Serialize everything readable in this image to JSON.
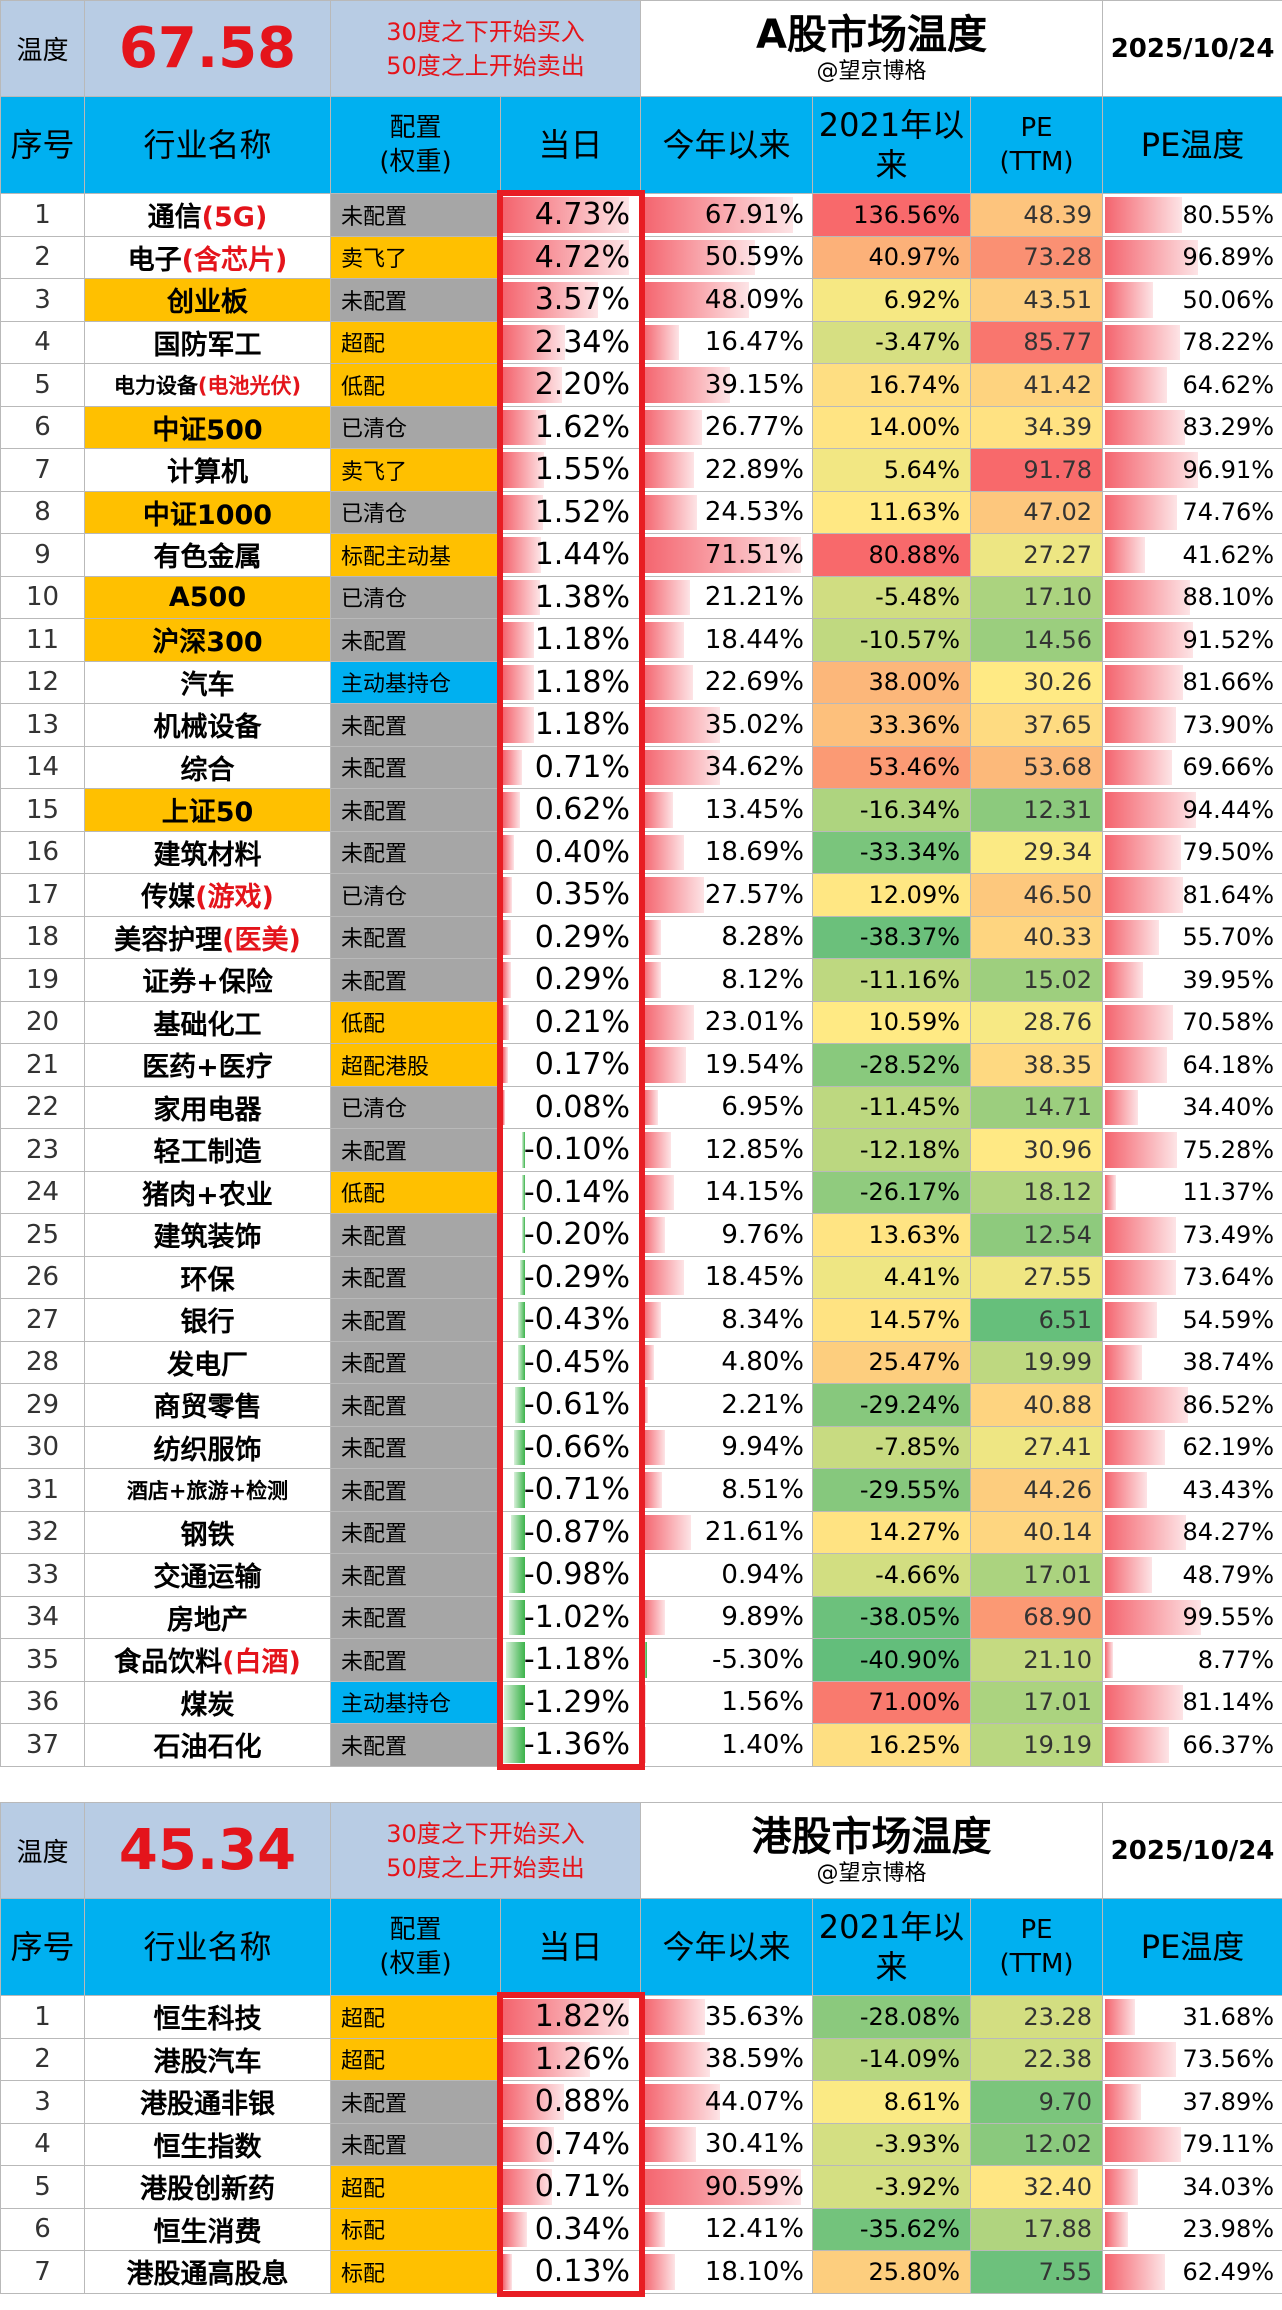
{
  "a_share": {
    "temp_label": "温度",
    "temp_value": "67.58",
    "rule_line1": "30度之下开始买入",
    "rule_line2": "50度之上开始卖出",
    "title": "A股市场温度",
    "author": "@望京博格",
    "date": "2025/10/24",
    "headers": [
      "序号",
      "行业名称",
      "配置\n(权重)",
      "当日",
      "今年以来",
      "2021年以来",
      "PE\n(TTM)",
      "PE温度"
    ],
    "rows": [
      {
        "idx": "1",
        "name": "通信",
        "hl": "(5G)",
        "alloc": "未配置",
        "ac": "gray",
        "nc": "",
        "day": "4.73%",
        "ytd": "67.91%",
        "since": "136.56%",
        "pe": "48.39",
        "pet": "80.55%"
      },
      {
        "idx": "2",
        "name": "电子",
        "hl": "(含芯片)",
        "alloc": "卖飞了",
        "ac": "gold",
        "nc": "",
        "day": "4.72%",
        "ytd": "50.59%",
        "since": "40.97%",
        "pe": "73.28",
        "pet": "96.89%"
      },
      {
        "idx": "3",
        "name": "创业板",
        "hl": "",
        "alloc": "未配置",
        "ac": "gray",
        "nc": "gold",
        "day": "3.57%",
        "ytd": "48.09%",
        "since": "6.92%",
        "pe": "43.51",
        "pet": "50.06%"
      },
      {
        "idx": "4",
        "name": "国防军工",
        "hl": "",
        "alloc": "超配",
        "ac": "gold",
        "nc": "",
        "day": "2.34%",
        "ytd": "16.47%",
        "since": "-3.47%",
        "pe": "85.77",
        "pet": "78.22%"
      },
      {
        "idx": "5",
        "name": "电力设备",
        "hl": "(电池光伏)",
        "alloc": "低配",
        "ac": "gold",
        "nc": "sm",
        "day": "2.20%",
        "ytd": "39.15%",
        "since": "16.74%",
        "pe": "41.42",
        "pet": "64.62%"
      },
      {
        "idx": "6",
        "name": "中证500",
        "hl": "",
        "alloc": "已清仓",
        "ac": "gray",
        "nc": "gold",
        "day": "1.62%",
        "ytd": "26.77%",
        "since": "14.00%",
        "pe": "34.39",
        "pet": "83.29%"
      },
      {
        "idx": "7",
        "name": "计算机",
        "hl": "",
        "alloc": "卖飞了",
        "ac": "gold",
        "nc": "",
        "day": "1.55%",
        "ytd": "22.89%",
        "since": "5.64%",
        "pe": "91.78",
        "pet": "96.91%"
      },
      {
        "idx": "8",
        "name": "中证1000",
        "hl": "",
        "alloc": "已清仓",
        "ac": "gray",
        "nc": "gold",
        "day": "1.52%",
        "ytd": "24.53%",
        "since": "11.63%",
        "pe": "47.02",
        "pet": "74.76%"
      },
      {
        "idx": "9",
        "name": "有色金属",
        "hl": "",
        "alloc": "标配主动基",
        "ac": "gold",
        "nc": "",
        "day": "1.44%",
        "ytd": "71.51%",
        "since": "80.88%",
        "pe": "27.27",
        "pet": "41.62%"
      },
      {
        "idx": "10",
        "name": "A500",
        "hl": "",
        "alloc": "已清仓",
        "ac": "gray",
        "nc": "gold",
        "day": "1.38%",
        "ytd": "21.21%",
        "since": "-5.48%",
        "pe": "17.10",
        "pet": "88.10%"
      },
      {
        "idx": "11",
        "name": "沪深300",
        "hl": "",
        "alloc": "未配置",
        "ac": "gray",
        "nc": "gold",
        "day": "1.18%",
        "ytd": "18.44%",
        "since": "-10.57%",
        "pe": "14.56",
        "pet": "91.52%"
      },
      {
        "idx": "12",
        "name": "汽车",
        "hl": "",
        "alloc": "主动基持仓",
        "ac": "blue",
        "nc": "",
        "day": "1.18%",
        "ytd": "22.69%",
        "since": "38.00%",
        "pe": "30.26",
        "pet": "81.66%"
      },
      {
        "idx": "13",
        "name": "机械设备",
        "hl": "",
        "alloc": "未配置",
        "ac": "gray",
        "nc": "",
        "day": "1.18%",
        "ytd": "35.02%",
        "since": "33.36%",
        "pe": "37.65",
        "pet": "73.90%"
      },
      {
        "idx": "14",
        "name": "综合",
        "hl": "",
        "alloc": "未配置",
        "ac": "gray",
        "nc": "",
        "day": "0.71%",
        "ytd": "34.62%",
        "since": "53.46%",
        "pe": "53.68",
        "pet": "69.66%"
      },
      {
        "idx": "15",
        "name": "上证50",
        "hl": "",
        "alloc": "未配置",
        "ac": "gray",
        "nc": "gold",
        "day": "0.62%",
        "ytd": "13.45%",
        "since": "-16.34%",
        "pe": "12.31",
        "pet": "94.44%"
      },
      {
        "idx": "16",
        "name": "建筑材料",
        "hl": "",
        "alloc": "未配置",
        "ac": "gray",
        "nc": "",
        "day": "0.40%",
        "ytd": "18.69%",
        "since": "-33.34%",
        "pe": "29.34",
        "pet": "79.50%"
      },
      {
        "idx": "17",
        "name": "传媒",
        "hl": "(游戏)",
        "alloc": "已清仓",
        "ac": "gray",
        "nc": "",
        "day": "0.35%",
        "ytd": "27.57%",
        "since": "12.09%",
        "pe": "46.50",
        "pet": "81.64%"
      },
      {
        "idx": "18",
        "name": "美容护理",
        "hl": "(医美)",
        "alloc": "未配置",
        "ac": "gray",
        "nc": "",
        "day": "0.29%",
        "ytd": "8.28%",
        "since": "-38.37%",
        "pe": "40.33",
        "pet": "55.70%"
      },
      {
        "idx": "19",
        "name": "证券+保险",
        "hl": "",
        "alloc": "未配置",
        "ac": "gray",
        "nc": "",
        "day": "0.29%",
        "ytd": "8.12%",
        "since": "-11.16%",
        "pe": "15.02",
        "pet": "39.95%"
      },
      {
        "idx": "20",
        "name": "基础化工",
        "hl": "",
        "alloc": "低配",
        "ac": "gold",
        "nc": "",
        "day": "0.21%",
        "ytd": "23.01%",
        "since": "10.59%",
        "pe": "28.76",
        "pet": "70.58%"
      },
      {
        "idx": "21",
        "name": "医药+医疗",
        "hl": "",
        "alloc": "超配港股",
        "ac": "gold",
        "nc": "",
        "day": "0.17%",
        "ytd": "19.54%",
        "since": "-28.52%",
        "pe": "38.35",
        "pet": "64.18%"
      },
      {
        "idx": "22",
        "name": "家用电器",
        "hl": "",
        "alloc": "已清仓",
        "ac": "gray",
        "nc": "",
        "day": "0.08%",
        "ytd": "6.95%",
        "since": "-11.45%",
        "pe": "14.71",
        "pet": "34.40%"
      },
      {
        "idx": "23",
        "name": "轻工制造",
        "hl": "",
        "alloc": "未配置",
        "ac": "gray",
        "nc": "",
        "day": "-0.10%",
        "ytd": "12.85%",
        "since": "-12.18%",
        "pe": "30.96",
        "pet": "75.28%"
      },
      {
        "idx": "24",
        "name": "猪肉+农业",
        "hl": "",
        "alloc": "低配",
        "ac": "gold",
        "nc": "",
        "day": "-0.14%",
        "ytd": "14.15%",
        "since": "-26.17%",
        "pe": "18.12",
        "pet": "11.37%"
      },
      {
        "idx": "25",
        "name": "建筑装饰",
        "hl": "",
        "alloc": "未配置",
        "ac": "gray",
        "nc": "",
        "day": "-0.20%",
        "ytd": "9.76%",
        "since": "13.63%",
        "pe": "12.54",
        "pet": "73.49%"
      },
      {
        "idx": "26",
        "name": "环保",
        "hl": "",
        "alloc": "未配置",
        "ac": "gray",
        "nc": "",
        "day": "-0.29%",
        "ytd": "18.45%",
        "since": "4.41%",
        "pe": "27.55",
        "pet": "73.64%"
      },
      {
        "idx": "27",
        "name": "银行",
        "hl": "",
        "alloc": "未配置",
        "ac": "gray",
        "nc": "",
        "day": "-0.43%",
        "ytd": "8.34%",
        "since": "14.57%",
        "pe": "6.51",
        "pet": "54.59%"
      },
      {
        "idx": "28",
        "name": "发电厂",
        "hl": "",
        "alloc": "未配置",
        "ac": "gray",
        "nc": "",
        "day": "-0.45%",
        "ytd": "4.80%",
        "since": "25.47%",
        "pe": "19.99",
        "pet": "38.74%"
      },
      {
        "idx": "29",
        "name": "商贸零售",
        "hl": "",
        "alloc": "未配置",
        "ac": "gray",
        "nc": "",
        "day": "-0.61%",
        "ytd": "2.21%",
        "since": "-29.24%",
        "pe": "40.88",
        "pet": "86.52%"
      },
      {
        "idx": "30",
        "name": "纺织服饰",
        "hl": "",
        "alloc": "未配置",
        "ac": "gray",
        "nc": "",
        "day": "-0.66%",
        "ytd": "9.94%",
        "since": "-7.85%",
        "pe": "27.41",
        "pet": "62.19%"
      },
      {
        "idx": "31",
        "name": "酒店+旅游+检测",
        "hl": "",
        "alloc": "未配置",
        "ac": "gray",
        "nc": "sm",
        "day": "-0.71%",
        "ytd": "8.51%",
        "since": "-29.55%",
        "pe": "44.26",
        "pet": "43.43%"
      },
      {
        "idx": "32",
        "name": "钢铁",
        "hl": "",
        "alloc": "未配置",
        "ac": "gray",
        "nc": "",
        "day": "-0.87%",
        "ytd": "21.61%",
        "since": "14.27%",
        "pe": "40.14",
        "pet": "84.27%"
      },
      {
        "idx": "33",
        "name": "交通运输",
        "hl": "",
        "alloc": "未配置",
        "ac": "gray",
        "nc": "",
        "day": "-0.98%",
        "ytd": "0.94%",
        "since": "-4.66%",
        "pe": "17.01",
        "pet": "48.79%"
      },
      {
        "idx": "34",
        "name": "房地产",
        "hl": "",
        "alloc": "未配置",
        "ac": "gray",
        "nc": "",
        "day": "-1.02%",
        "ytd": "9.89%",
        "since": "-38.05%",
        "pe": "68.90",
        "pet": "99.55%"
      },
      {
        "idx": "35",
        "name": "食品饮料",
        "hl": "(白酒)",
        "alloc": "未配置",
        "ac": "gray",
        "nc": "",
        "day": "-1.18%",
        "ytd": "-5.30%",
        "since": "-40.90%",
        "pe": "21.10",
        "pet": "8.77%"
      },
      {
        "idx": "36",
        "name": "煤炭",
        "hl": "",
        "alloc": "主动基持仓",
        "ac": "blue",
        "nc": "",
        "day": "-1.29%",
        "ytd": "1.56%",
        "since": "71.00%",
        "pe": "17.01",
        "pet": "81.14%"
      },
      {
        "idx": "37",
        "name": "石油石化",
        "hl": "",
        "alloc": "未配置",
        "ac": "gray",
        "nc": "",
        "day": "-1.36%",
        "ytd": "1.40%",
        "since": "16.25%",
        "pe": "19.19",
        "pet": "66.37%"
      }
    ]
  },
  "hk_share": {
    "temp_label": "温度",
    "temp_value": "45.34",
    "rule_line1": "30度之下开始买入",
    "rule_line2": "50度之上开始卖出",
    "title": "港股市场温度",
    "author": "@望京博格",
    "date": "2025/10/24",
    "headers": [
      "序号",
      "行业名称",
      "配置\n(权重)",
      "当日",
      "今年以来",
      "2021年以\n来",
      "PE\n(TTM)",
      "PE温度"
    ],
    "rows": [
      {
        "idx": "1",
        "name": "恒生科技",
        "hl": "",
        "alloc": "超配",
        "ac": "gold",
        "nc": "",
        "day": "1.82%",
        "ytd": "35.63%",
        "since": "-28.08%",
        "pe": "23.28",
        "pet": "31.68%"
      },
      {
        "idx": "2",
        "name": "港股汽车",
        "hl": "",
        "alloc": "超配",
        "ac": "gold",
        "nc": "",
        "day": "1.26%",
        "ytd": "38.59%",
        "since": "-14.09%",
        "pe": "22.38",
        "pet": "73.56%"
      },
      {
        "idx": "3",
        "name": "港股通非银",
        "hl": "",
        "alloc": "未配置",
        "ac": "gray",
        "nc": "",
        "day": "0.88%",
        "ytd": "44.07%",
        "since": "8.61%",
        "pe": "9.70",
        "pet": "37.89%"
      },
      {
        "idx": "4",
        "name": "恒生指数",
        "hl": "",
        "alloc": "未配置",
        "ac": "gray",
        "nc": "",
        "day": "0.74%",
        "ytd": "30.41%",
        "since": "-3.93%",
        "pe": "12.02",
        "pet": "79.11%"
      },
      {
        "idx": "5",
        "name": "港股创新药",
        "hl": "",
        "alloc": "超配",
        "ac": "gold",
        "nc": "",
        "day": "0.71%",
        "ytd": "90.59%",
        "since": "-3.92%",
        "pe": "32.40",
        "pet": "34.03%"
      },
      {
        "idx": "6",
        "name": "恒生消费",
        "hl": "",
        "alloc": "标配",
        "ac": "gold",
        "nc": "",
        "day": "0.34%",
        "ytd": "12.41%",
        "since": "-35.62%",
        "pe": "17.88",
        "pet": "23.98%"
      },
      {
        "idx": "7",
        "name": "港股通高股息",
        "hl": "",
        "alloc": "标配",
        "ac": "gold",
        "nc": "",
        "day": "0.13%",
        "ytd": "18.10%",
        "since": "25.80%",
        "pe": "7.55",
        "pet": "62.49%"
      }
    ]
  },
  "colors": {
    "accent_red": "#e4141b",
    "header_blue": "#00b0f0",
    "panel_blue": "#b8cce4",
    "gold": "#ffc000",
    "gray": "#a6a6a6"
  }
}
